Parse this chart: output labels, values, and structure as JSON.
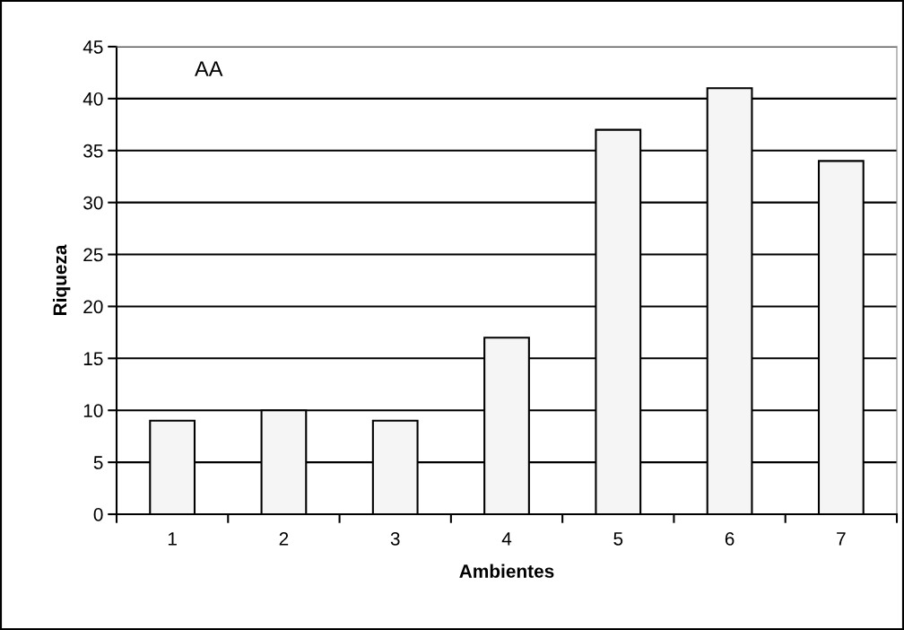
{
  "chart_data": {
    "type": "bar",
    "categories": [
      "1",
      "2",
      "3",
      "4",
      "5",
      "6",
      "7"
    ],
    "values": [
      9,
      10,
      9,
      17,
      37,
      41,
      34
    ],
    "color": "#f5f5f5",
    "xlabel": "Ambientes",
    "ylabel": "Riqueza",
    "annotations": [
      "AA"
    ],
    "ylim": [
      0,
      45
    ],
    "yticks": [
      0,
      5,
      10,
      15,
      20,
      25,
      30,
      35,
      40,
      45
    ],
    "grid": "y",
    "legend": false
  }
}
